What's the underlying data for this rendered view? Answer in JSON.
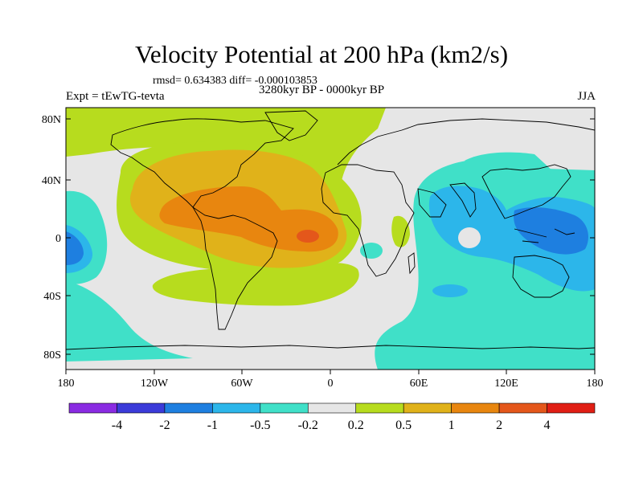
{
  "title": "Velocity Potential at 200 hPa (km2/s)",
  "stats": "rmsd= 0.634383 diff= -0.000103853",
  "experiment": "Expt = tEwTG-tevta",
  "period": "3280kyr BP - 0000kyr BP",
  "season": "JJA",
  "lat_labels": [
    "80N",
    "40N",
    "0",
    "40S",
    "80S"
  ],
  "lon_labels": [
    "180",
    "120W",
    "60W",
    "0",
    "60E",
    "120E",
    "180"
  ],
  "colorbar": {
    "colors": [
      "#8a2be2",
      "#3b3bd9",
      "#1e7fe0",
      "#2cb6ea",
      "#40e0c8",
      "#e6e6e6",
      "#b7dc1e",
      "#e0b21a",
      "#e8860f",
      "#e4571b",
      "#e01e14"
    ],
    "tick_labels": [
      "-4",
      "-2",
      "-1",
      "-0.5",
      "-0.2",
      "0.2",
      "0.5",
      "1",
      "2",
      "4"
    ]
  },
  "legend_colors": {
    "ocean_fill": "#e6e6e6",
    "coastline": "#000000"
  }
}
